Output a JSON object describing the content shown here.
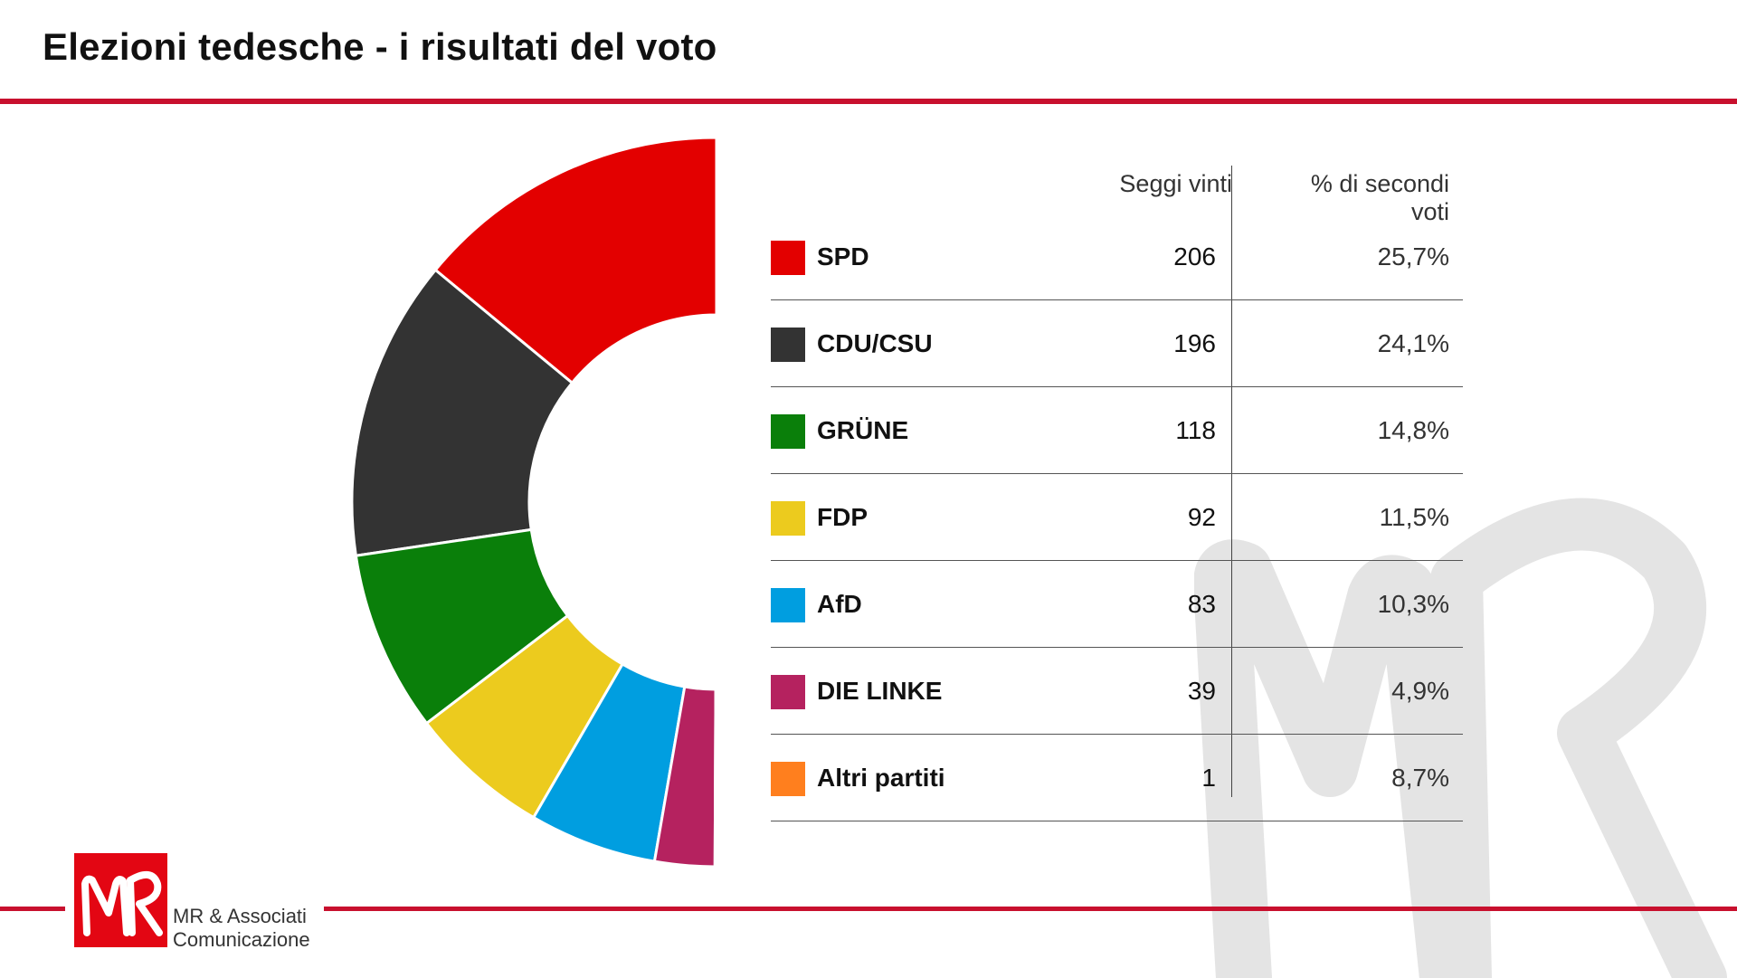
{
  "header": {
    "title": "Elezioni tedesche - i risultati del voto"
  },
  "table": {
    "col_seats": "Seggi vinti",
    "col_pct": "% di secondi voti",
    "rows": [
      {
        "party": "SPD",
        "seats": "206",
        "pct": "25,7%",
        "color": "#e30000"
      },
      {
        "party": "CDU/CSU",
        "seats": "196",
        "pct": "24,1%",
        "color": "#333333"
      },
      {
        "party": "GRÜNE",
        "seats": "118",
        "pct": "14,8%",
        "color": "#0a7f0a"
      },
      {
        "party": "FDP",
        "seats": "92",
        "pct": "11,5%",
        "color": "#eccb1e"
      },
      {
        "party": "AfD",
        "seats": "83",
        "pct": "10,3%",
        "color": "#009ee0"
      },
      {
        "party": "DIE LINKE",
        "seats": "39",
        "pct": "4,9%",
        "color": "#b5225f"
      },
      {
        "party": "Altri partiti",
        "seats": "1",
        "pct": "8,7%",
        "color": "#ff7f1e"
      }
    ]
  },
  "chart_data": {
    "type": "pie",
    "variant": "half-donut",
    "categories": [
      "SPD",
      "CDU/CSU",
      "GRÜNE",
      "FDP",
      "AfD",
      "DIE LINKE",
      "Altri partiti"
    ],
    "values": [
      206,
      196,
      118,
      92,
      83,
      39,
      1
    ],
    "colors": [
      "#e30000",
      "#333333",
      "#0a7f0a",
      "#eccb1e",
      "#009ee0",
      "#b5225f",
      "#ff7f1e"
    ]
  },
  "brand": {
    "logo_text": "MR",
    "name_line1": "MR & Associati",
    "name_line2": "Comunicazione",
    "accent": "#c8102e"
  }
}
